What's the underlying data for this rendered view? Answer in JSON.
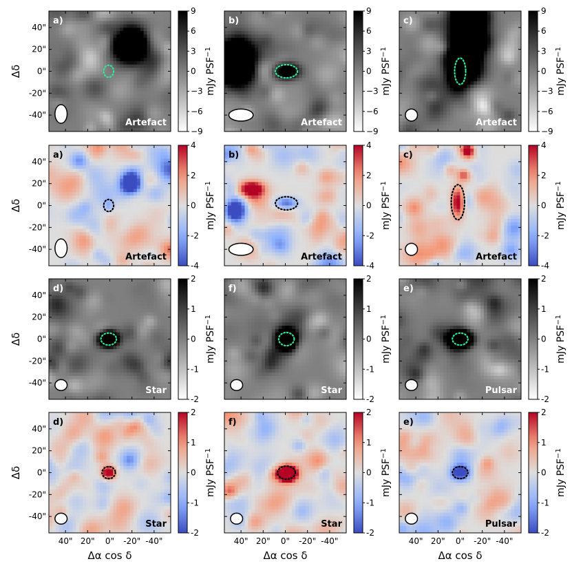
{
  "chart_data": {
    "type": "heatmap",
    "description_units": "arcsec offsets; flux in mJy PSF^-1",
    "x_axis": {
      "label": "Δα cos δ",
      "ticks": [
        40,
        20,
        0,
        -20,
        -40
      ],
      "tick_labels": [
        "40\"",
        "20\"",
        "0\"",
        "-20\"",
        "-40\""
      ],
      "range": [
        55,
        -55
      ]
    },
    "y_axis": {
      "label": "Δδ",
      "ticks": [
        40,
        20,
        0,
        -20,
        -40
      ],
      "tick_labels": [
        "40\"",
        "20\"",
        "0\"",
        "-20\"",
        "-40\""
      ],
      "range": [
        -55,
        55
      ]
    },
    "colorbar_label": "mJy PSF",
    "colorbar_label_sup": "−1",
    "rows": [
      {
        "cmap": "gray",
        "range": [
          -9,
          9
        ],
        "ticks": [
          9,
          6,
          3,
          0,
          -3,
          -6,
          -9
        ],
        "tick_labels": [
          "9",
          "6",
          "3",
          "0",
          "−3",
          "−6",
          "−9"
        ],
        "marker_color": "#2ee89a",
        "text_color": "#ffffff",
        "panels": [
          {
            "tag": "a)",
            "label": "Artefact",
            "beam": {
              "x": 44,
              "y": -39,
              "rx": 5.5,
              "ry": 8.5
            },
            "marker": {
              "x": 1,
              "y": 0,
              "rx": 4.5,
              "ry": 5.5
            },
            "sources": [
              {
                "x": -19,
                "y": 24,
                "sx": 11,
                "sy": 11,
                "amp": 26
              },
              {
                "x": 3,
                "y": 26,
                "sx": 5,
                "sy": 7,
                "amp": -4
              }
            ]
          },
          {
            "tag": "b)",
            "label": "Artefact",
            "beam": {
              "x": 40,
              "y": -40,
              "rx": 11,
              "ry": 5.5
            },
            "marker": {
              "x": -1,
              "y": 0,
              "rx": 10,
              "ry": 6
            },
            "sources": [
              {
                "x": -1,
                "y": 0,
                "sx": 8,
                "sy": 5,
                "amp": 16
              },
              {
                "x": 45,
                "y": 8,
                "sx": 13,
                "sy": 14,
                "amp": 30
              },
              {
                "x": 22,
                "y": 0,
                "sx": 6,
                "sy": 8,
                "amp": -7
              }
            ]
          },
          {
            "tag": "c)",
            "label": "Artefact",
            "beam": {
              "x": 44,
              "y": -40,
              "rx": 5.5,
              "ry": 5.5
            },
            "marker": {
              "x": 0,
              "y": 0,
              "rx": 5,
              "ry": 12
            },
            "sources": [
              {
                "x": -8,
                "y": 40,
                "sx": 10,
                "sy": 24,
                "amp": 30
              },
              {
                "x": 1,
                "y": 3,
                "sx": 9,
                "sy": 16,
                "amp": 20
              }
            ]
          }
        ]
      },
      {
        "cmap": "coolwarm",
        "range": [
          -4,
          4
        ],
        "ticks": [
          4,
          2,
          0,
          -2,
          -4
        ],
        "tick_labels": [
          "4",
          "2",
          "0",
          "-2",
          "-4"
        ],
        "marker_color": "#000000",
        "text_color": "#000000",
        "panels": [
          {
            "tag": "a)",
            "label": "Artefact",
            "beam": {
              "x": 44,
              "y": -39,
              "rx": 5.5,
              "ry": 8.5
            },
            "marker": {
              "x": 1,
              "y": 0,
              "rx": 4.5,
              "ry": 5.5
            },
            "sources": [
              {
                "x": -19,
                "y": 20,
                "sx": 6,
                "sy": 6,
                "amp": -7
              },
              {
                "x": 1,
                "y": 0,
                "sx": 3,
                "sy": 4,
                "amp": -1.5
              }
            ]
          },
          {
            "tag": "b)",
            "label": "Artefact",
            "beam": {
              "x": 40,
              "y": -40,
              "rx": 11,
              "ry": 5.5
            },
            "marker": {
              "x": -1,
              "y": 2,
              "rx": 10,
              "ry": 6
            },
            "sources": [
              {
                "x": 30,
                "y": 15,
                "sx": 8,
                "sy": 5,
                "amp": 6
              },
              {
                "x": 45,
                "y": -4,
                "sx": 6,
                "sy": 7,
                "amp": -5
              },
              {
                "x": -1,
                "y": 2,
                "sx": 7,
                "sy": 4,
                "amp": -4
              }
            ]
          },
          {
            "tag": "c)",
            "label": "Artefact",
            "beam": {
              "x": 44,
              "y": -40,
              "rx": 5.5,
              "ry": 5.5
            },
            "marker": {
              "x": 2,
              "y": 3,
              "rx": 6,
              "ry": 16
            },
            "sources": [
              {
                "x": 2,
                "y": 3,
                "sx": 4,
                "sy": 9,
                "amp": 5
              },
              {
                "x": -3,
                "y": 28,
                "sx": 4,
                "sy": 4,
                "amp": 3
              },
              {
                "x": -7,
                "y": 50,
                "sx": 4,
                "sy": 4,
                "amp": 5
              }
            ]
          }
        ]
      },
      {
        "cmap": "gray",
        "range": [
          -2,
          2
        ],
        "ticks": [
          2,
          1,
          0,
          -1,
          -2
        ],
        "tick_labels": [
          "2",
          "1",
          "0",
          "-1",
          "-2"
        ],
        "marker_color": "#2ee89a",
        "text_color": "#ffffff",
        "panels": [
          {
            "tag": "d)",
            "label": "Star",
            "beam": {
              "x": 44,
              "y": -42,
              "rx": 5.5,
              "ry": 5
            },
            "marker": {
              "x": 1,
              "y": 0,
              "rx": 7,
              "ry": 5.5
            },
            "sources": [
              {
                "x": 1,
                "y": 0,
                "sx": 6,
                "sy": 5,
                "amp": 6
              }
            ]
          },
          {
            "tag": "f)",
            "label": "Star",
            "beam": {
              "x": 44,
              "y": -42,
              "rx": 5.5,
              "ry": 5
            },
            "marker": {
              "x": -1,
              "y": 0,
              "rx": 7,
              "ry": 6
            },
            "sources": [
              {
                "x": -1,
                "y": 0,
                "sx": 6,
                "sy": 6,
                "amp": 7
              }
            ]
          },
          {
            "tag": "e)",
            "label": "Pulsar",
            "beam": {
              "x": 44,
              "y": -42,
              "rx": 5.5,
              "ry": 5
            },
            "marker": {
              "x": 0,
              "y": 0,
              "rx": 7,
              "ry": 5.5
            },
            "sources": [
              {
                "x": 0,
                "y": 0,
                "sx": 7,
                "sy": 5,
                "amp": 8
              }
            ]
          }
        ]
      },
      {
        "cmap": "coolwarm",
        "range": [
          -2,
          2
        ],
        "ticks": [
          2,
          1,
          0,
          -1,
          -2
        ],
        "tick_labels": [
          "2",
          "1",
          "0",
          "-1",
          "-2"
        ],
        "marker_color": "#000000",
        "text_color": "#000000",
        "panels": [
          {
            "tag": "d)",
            "label": "Star",
            "beam": {
              "x": 44,
              "y": -42,
              "rx": 5.5,
              "ry": 5
            },
            "marker": {
              "x": 1,
              "y": 0,
              "rx": 6,
              "ry": 5.5
            },
            "sources": [
              {
                "x": 1,
                "y": 0,
                "sx": 4,
                "sy": 4,
                "amp": 3
              }
            ]
          },
          {
            "tag": "f)",
            "label": "Star",
            "beam": {
              "x": 44,
              "y": -42,
              "rx": 5.5,
              "ry": 5
            },
            "marker": {
              "x": -1,
              "y": 0,
              "rx": 8,
              "ry": 6
            },
            "sources": [
              {
                "x": -2,
                "y": -1,
                "sx": 6,
                "sy": 5,
                "amp": 5
              }
            ]
          },
          {
            "tag": "e)",
            "label": "Pulsar",
            "beam": {
              "x": 44,
              "y": -42,
              "rx": 5.5,
              "ry": 5
            },
            "marker": {
              "x": 0,
              "y": 0,
              "rx": 7,
              "ry": 5.5
            },
            "sources": [
              {
                "x": 0,
                "y": 0,
                "sx": 6,
                "sy": 5,
                "amp": -2.5
              }
            ]
          }
        ]
      }
    ]
  }
}
